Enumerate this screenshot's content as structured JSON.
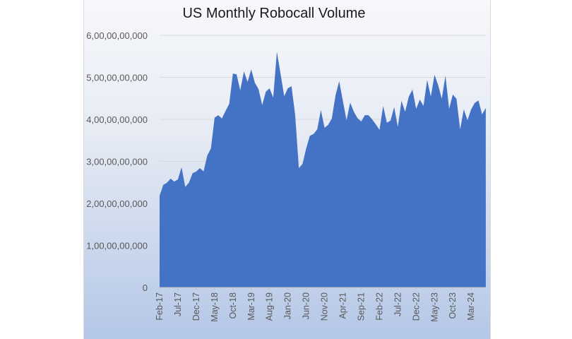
{
  "chart_data": {
    "type": "area",
    "title": "US Monthly Robocall Volume",
    "xlabel": "",
    "ylabel": "",
    "ylim": [
      0,
      6000000000
    ],
    "grid": true,
    "legend": "none",
    "color": "#4472c4",
    "start_month": "Feb-17",
    "x_tick_labels": [
      "Feb-17",
      "Jul-17",
      "Dec-17",
      "May-18",
      "Oct-18",
      "Mar-19",
      "Aug-19",
      "Jan-20",
      "Jun-20",
      "Nov-20",
      "Apr-21",
      "Sep-21",
      "Feb-22",
      "Jul-22",
      "Dec-22",
      "May-23",
      "Oct-23",
      "Mar-24"
    ],
    "x_tick_every_months": 5,
    "y_tick_labels": [
      "0",
      "1,00,00,00,000",
      "2,00,00,00,000",
      "3,00,00,00,000",
      "4,00,00,00,000",
      "5,00,00,00,000",
      "6,00,00,00,000"
    ],
    "y_tick_values": [
      0,
      1000000000,
      2000000000,
      3000000000,
      4000000000,
      5000000000,
      6000000000
    ],
    "values_billions": [
      2.18,
      2.44,
      2.49,
      2.59,
      2.52,
      2.57,
      2.86,
      2.39,
      2.49,
      2.72,
      2.76,
      2.84,
      2.76,
      3.14,
      3.31,
      4.04,
      4.1,
      4.02,
      4.2,
      4.37,
      5.09,
      5.07,
      4.69,
      5.14,
      4.89,
      5.19,
      4.87,
      4.72,
      4.34,
      4.66,
      4.74,
      4.52,
      5.61,
      5.08,
      4.55,
      4.74,
      4.79,
      4.1,
      2.84,
      2.94,
      3.31,
      3.61,
      3.65,
      3.76,
      4.22,
      3.8,
      3.87,
      4.02,
      4.57,
      4.91,
      4.44,
      3.98,
      4.4,
      4.18,
      4.03,
      3.95,
      4.1,
      4.1,
      4.0,
      3.88,
      3.75,
      4.32,
      3.92,
      3.97,
      4.29,
      3.82,
      4.44,
      4.18,
      4.54,
      4.71,
      4.25,
      4.47,
      4.32,
      4.94,
      4.54,
      5.06,
      4.82,
      4.49,
      5.04,
      4.25,
      4.59,
      4.49,
      3.76,
      4.24,
      3.98,
      4.24,
      4.39,
      4.45,
      4.12,
      4.27
    ]
  }
}
